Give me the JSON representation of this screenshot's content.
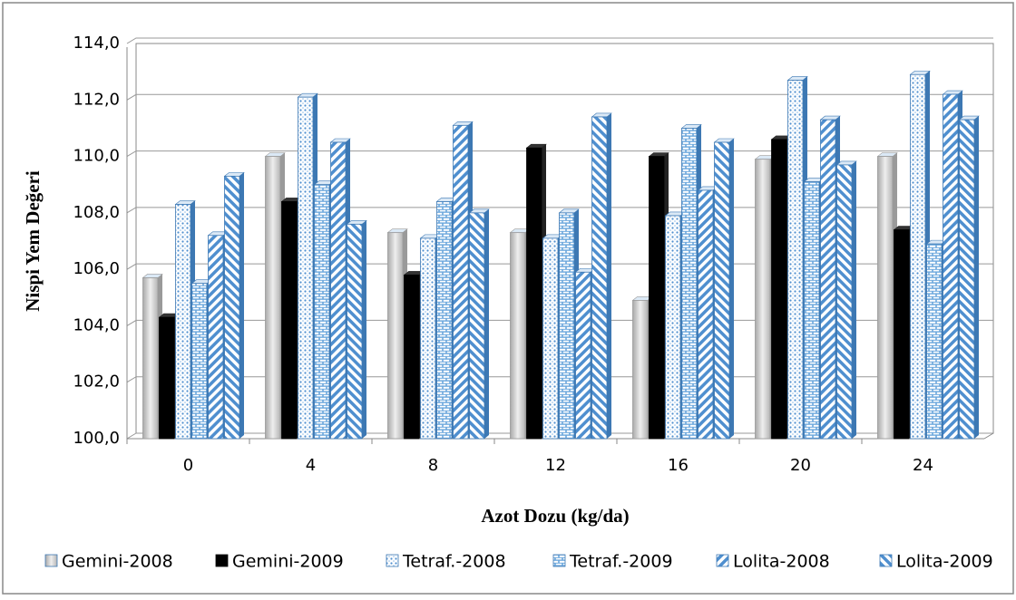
{
  "chart_data": {
    "type": "bar",
    "x_label": "Azot Dozu (kg/da)",
    "y_label": "Nispi Yem Değeri",
    "categories": [
      "0",
      "4",
      "8",
      "12",
      "16",
      "20",
      "24"
    ],
    "series": [
      {
        "name": "Gemini-2008",
        "color": "#c8c8c8",
        "pattern": "gradient",
        "values": [
          105.7,
          110.0,
          107.3,
          107.3,
          104.9,
          109.9,
          110.0
        ]
      },
      {
        "name": "Gemini-2009",
        "color": "#000000",
        "pattern": "solid",
        "values": [
          104.3,
          108.4,
          105.8,
          110.3,
          110.0,
          110.6,
          107.4
        ]
      },
      {
        "name": "Tetraf.-2008",
        "color": "#5b9bd5",
        "pattern": "dots",
        "values": [
          108.3,
          112.1,
          107.1,
          107.1,
          107.9,
          112.7,
          112.9
        ]
      },
      {
        "name": "Tetraf.-2009",
        "color": "#5b9bd5",
        "pattern": "bricks",
        "values": [
          105.5,
          109.0,
          108.4,
          108.0,
          111.0,
          109.1,
          106.9
        ]
      },
      {
        "name": "Lolita-2008",
        "color": "#5b9bd5",
        "pattern": "diag-up",
        "values": [
          107.2,
          110.5,
          111.1,
          105.9,
          108.8,
          111.3,
          112.2
        ]
      },
      {
        "name": "Lolita-2009",
        "color": "#5b9bd5",
        "pattern": "diag-down",
        "values": [
          109.3,
          107.6,
          108.0,
          111.4,
          110.5,
          109.7,
          111.3
        ]
      }
    ],
    "ylim": [
      100,
      114
    ],
    "yticks": [
      {
        "value": 100,
        "label": "100,0"
      },
      {
        "value": 102,
        "label": "102,0"
      },
      {
        "value": 104,
        "label": "104,0"
      },
      {
        "value": 106,
        "label": "106,0"
      },
      {
        "value": 108,
        "label": "108,0"
      },
      {
        "value": 110,
        "label": "110,0"
      },
      {
        "value": 112,
        "label": "112,0"
      },
      {
        "value": 114,
        "label": "114,0"
      }
    ],
    "grid": true
  }
}
